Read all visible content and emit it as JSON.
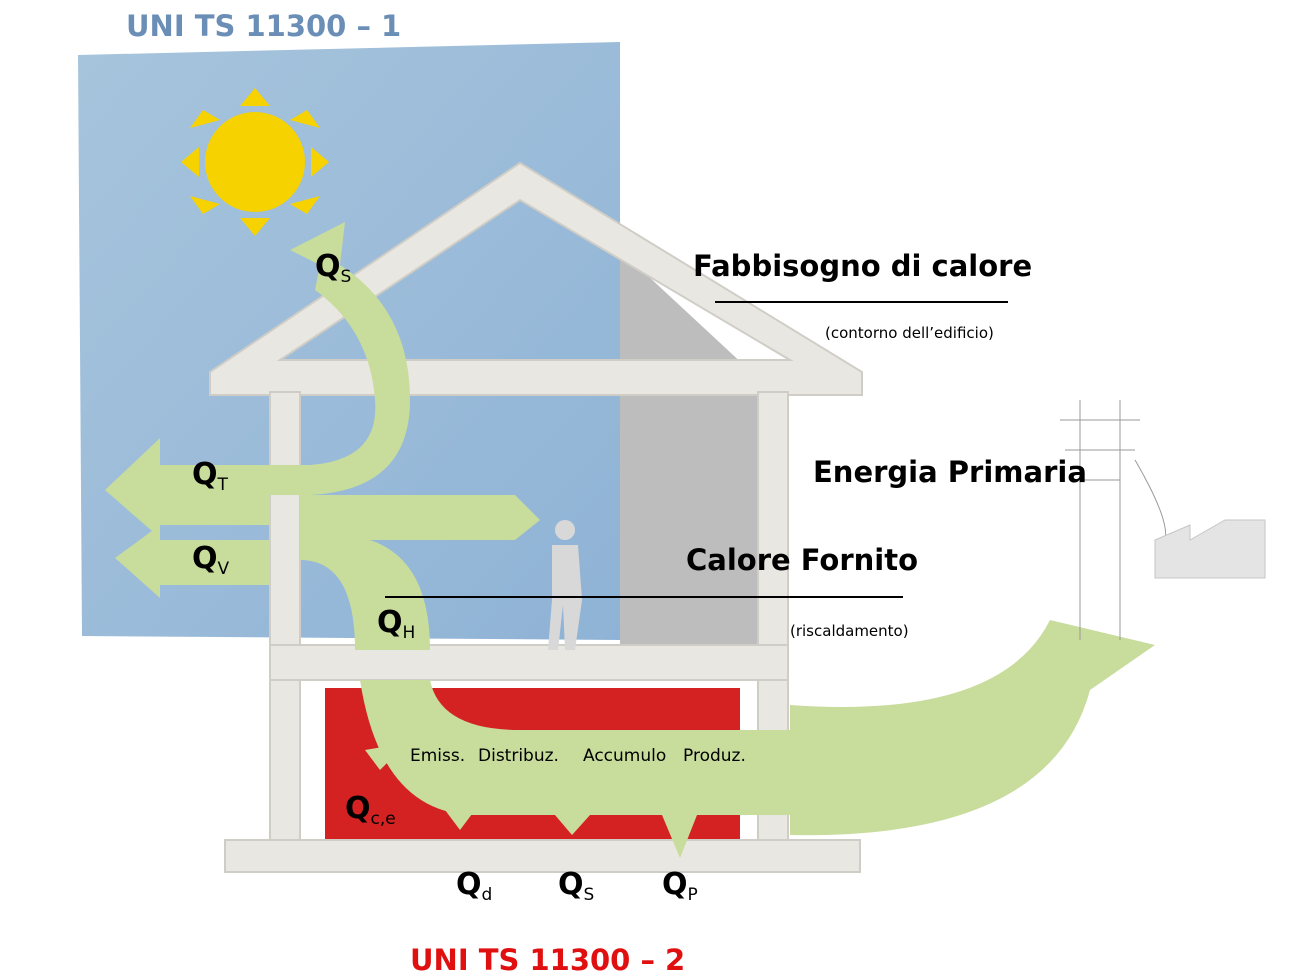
{
  "titles": {
    "top": "UNI TS 11300 – 1",
    "bottom": "UNI TS 11300 – 2"
  },
  "labels": {
    "fabbisogno": "Fabbisogno di calore",
    "contorno": "(contorno dell’edificio)",
    "energia": "Energia Primaria",
    "calore_fornito": "Calore Fornito",
    "riscaldamento": "(riscaldamento)"
  },
  "stages": [
    "Emiss.",
    "Distribuz.",
    "Accumulo",
    "Produz."
  ],
  "flows": [
    {
      "symbol": "Q",
      "sub": "S"
    },
    {
      "symbol": "Q",
      "sub": "T"
    },
    {
      "symbol": "Q",
      "sub": "V"
    },
    {
      "symbol": "Q",
      "sub": "H"
    },
    {
      "symbol": "Q",
      "sub": "c,e"
    },
    {
      "symbol": "Q",
      "sub": "d"
    },
    {
      "symbol": "Q",
      "sub": "S"
    },
    {
      "symbol": "Q",
      "sub": "P"
    }
  ]
}
